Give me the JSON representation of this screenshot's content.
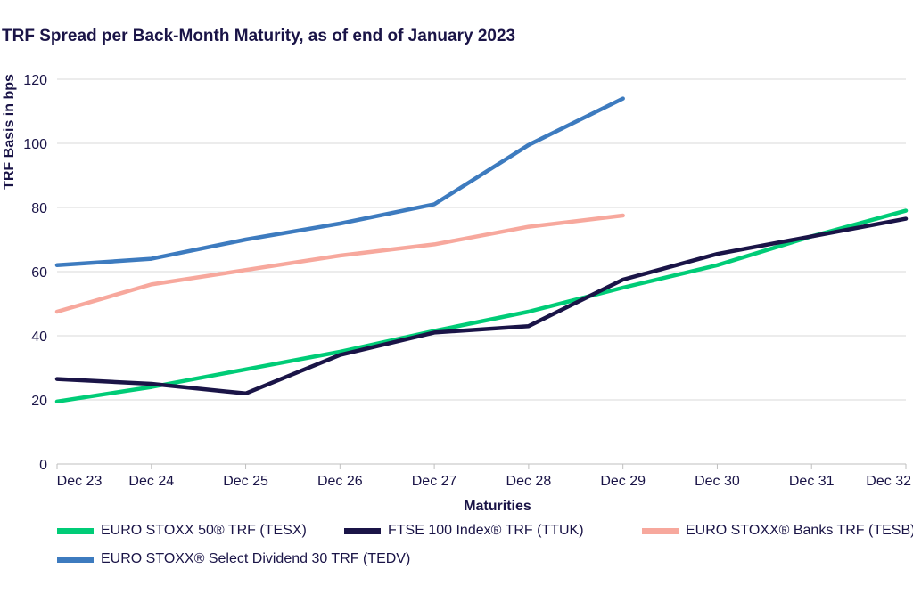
{
  "title": "TRF Spread per Back-Month Maturity, as of end of January 2023",
  "chart_data": {
    "type": "line",
    "title": "TRF Spread per Back-Month Maturity, as of end of January 2023",
    "xlabel": "Maturities",
    "ylabel": "TRF Basis in bps",
    "categories": [
      "Dec 23",
      "Dec 24",
      "Dec 25",
      "Dec 26",
      "Dec 27",
      "Dec 28",
      "Dec 29",
      "Dec 30",
      "Dec 31",
      "Dec 32"
    ],
    "ylim": [
      0,
      120
    ],
    "yticks": [
      0,
      20,
      40,
      60,
      80,
      100,
      120
    ],
    "grid": "horizontal",
    "legend_position": "bottom",
    "series": [
      {
        "name": "EURO STOXX 50® TRF (TESX)",
        "color": "#00cc77",
        "values": [
          19.5,
          24,
          29.5,
          35,
          41.5,
          47.5,
          55,
          62,
          71,
          79
        ]
      },
      {
        "name": "FTSE 100 Index® TRF (TTUK)",
        "color": "#1a1447",
        "values": [
          26.5,
          25,
          22,
          34,
          41,
          43,
          57.5,
          65.5,
          71,
          76.5
        ]
      },
      {
        "name": "EURO STOXX® Banks TRF (TESB)",
        "color": "#f7a89d",
        "values": [
          47.5,
          56,
          60.5,
          65,
          68.5,
          74,
          77.5,
          null,
          null,
          null
        ]
      },
      {
        "name": "EURO STOXX® Select Dividend 30 TRF (TEDV)",
        "color": "#3d7bbf",
        "values": [
          62,
          64,
          70,
          75,
          81,
          99.5,
          114,
          null,
          null,
          null
        ]
      }
    ]
  }
}
